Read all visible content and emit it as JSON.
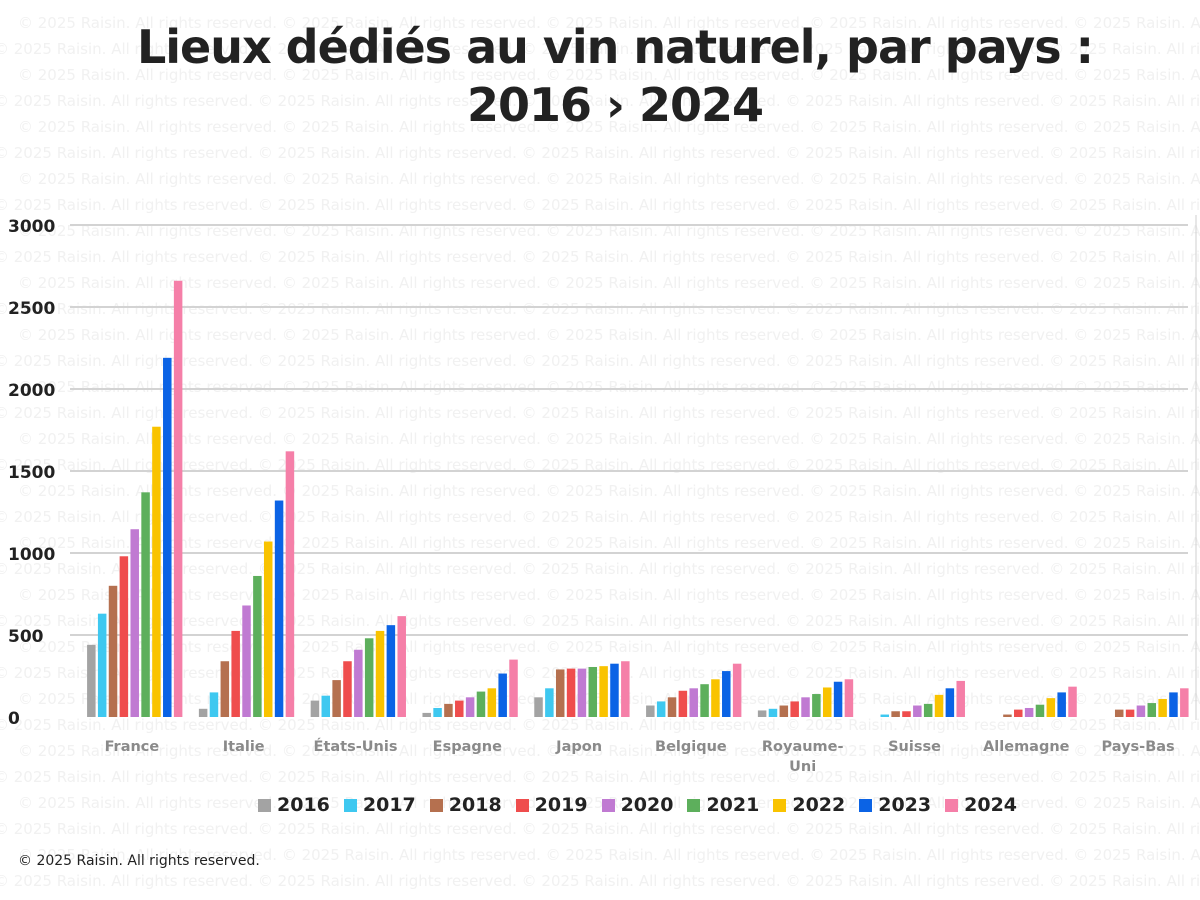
{
  "title_line1": "Lieux dédiés au vin naturel, par pays :",
  "title_line2": "2016 › 2024",
  "watermark_text": "© 2025 Raisin. All rights reserved.",
  "copyright": "© 2025 Raisin. All rights reserved.",
  "chart_data": {
    "type": "bar",
    "title": "Lieux dédiés au vin naturel, par pays : 2016 › 2024",
    "xlabel": "",
    "ylabel": "",
    "ylim": [
      0,
      3000
    ],
    "yticks": [
      0,
      500,
      1000,
      1500,
      2000,
      2500,
      3000
    ],
    "grid": true,
    "legend_position": "bottom",
    "categories": [
      "France",
      "Italie",
      "États-Unis",
      "Espagne",
      "Japon",
      "Belgique",
      "Royaume-Uni",
      "Suisse",
      "Allemagne",
      "Pays-Bas"
    ],
    "category_labels": [
      [
        "France"
      ],
      [
        "Italie"
      ],
      [
        "États-Unis"
      ],
      [
        "Espagne"
      ],
      [
        "Japon"
      ],
      [
        "Belgique"
      ],
      [
        "Royaume-",
        "Uni"
      ],
      [
        "Suisse"
      ],
      [
        "Allemagne"
      ],
      [
        "Pays-Bas"
      ]
    ],
    "series": [
      {
        "name": "2016",
        "color": "#a3a3a3",
        "values": [
          440,
          50,
          100,
          25,
          120,
          70,
          40,
          0,
          0,
          0
        ]
      },
      {
        "name": "2017",
        "color": "#3ec8f0",
        "values": [
          630,
          150,
          130,
          55,
          175,
          95,
          50,
          15,
          0,
          0
        ]
      },
      {
        "name": "2018",
        "color": "#b5704f",
        "values": [
          800,
          340,
          225,
          80,
          290,
          120,
          70,
          35,
          15,
          45
        ]
      },
      {
        "name": "2019",
        "color": "#ef4d4d",
        "values": [
          980,
          525,
          340,
          100,
          295,
          160,
          95,
          35,
          45,
          45
        ]
      },
      {
        "name": "2020",
        "color": "#c07ad2",
        "values": [
          1145,
          680,
          410,
          120,
          295,
          175,
          120,
          70,
          55,
          70
        ]
      },
      {
        "name": "2021",
        "color": "#5daf5c",
        "values": [
          1370,
          860,
          480,
          155,
          305,
          200,
          140,
          80,
          75,
          85
        ]
      },
      {
        "name": "2022",
        "color": "#f9c300",
        "values": [
          1770,
          1070,
          525,
          175,
          310,
          230,
          180,
          135,
          115,
          110
        ]
      },
      {
        "name": "2023",
        "color": "#0b63e5",
        "values": [
          2190,
          1320,
          560,
          265,
          325,
          280,
          215,
          175,
          150,
          150
        ]
      },
      {
        "name": "2024",
        "color": "#f57fa8",
        "values": [
          2660,
          1620,
          615,
          350,
          340,
          325,
          230,
          220,
          185,
          175
        ]
      }
    ]
  }
}
